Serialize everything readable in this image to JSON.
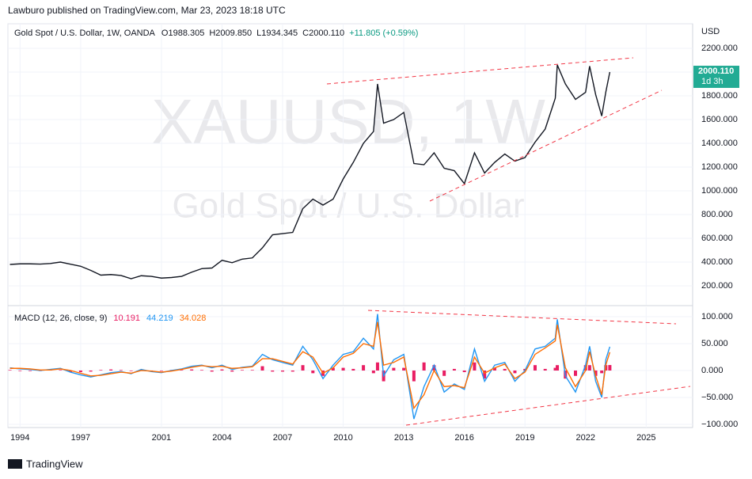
{
  "header": {
    "publisher": "Lawburo published on TradingView.com, Mar 23, 2023 18:18 UTC",
    "symbol": "Gold Spot / U.S. Dollar, 1W, OANDA",
    "ohlc": [
      "O1988.305",
      "H2009.850",
      "L1934.345",
      "C2000.110",
      "+11.805 (+0.59%)"
    ],
    "watermark": "XAUUSD, 1W",
    "watermark_sub": "Gold Spot / U.S. Dollar",
    "currency": "USD",
    "price_tag": "2000.110",
    "countdown": "1d 3h",
    "footer": "TradingView"
  },
  "chart_data": [
    {
      "type": "line",
      "x": [
        1993.5,
        1994,
        1994.5,
        1995,
        1995.5,
        1996,
        1996.5,
        1997,
        1997.5,
        1998,
        1998.5,
        1999,
        1999.5,
        2000,
        2000.5,
        2001,
        2001.5,
        2002,
        2002.5,
        2003,
        2003.5,
        2004,
        2004.5,
        2005,
        2005.5,
        2006,
        2006.5,
        2007,
        2007.5,
        2008,
        2008.5,
        2009,
        2009.5,
        2010,
        2010.5,
        2011,
        2011.5,
        2011.7,
        2012,
        2012.5,
        2013,
        2013.5,
        2014,
        2014.5,
        2015,
        2015.5,
        2016,
        2016.5,
        2017,
        2017.5,
        2018,
        2018.5,
        2019,
        2019.5,
        2020,
        2020.5,
        2020.6,
        2021,
        2021.5,
        2022,
        2022.2,
        2022.5,
        2022.8,
        2023,
        2023.2
      ],
      "series": [
        {
          "color": "#131722",
          "values": [
            380,
            385,
            385,
            383,
            388,
            400,
            382,
            365,
            330,
            290,
            295,
            287,
            260,
            285,
            280,
            265,
            270,
            280,
            315,
            345,
            350,
            415,
            395,
            425,
            435,
            520,
            630,
            640,
            650,
            850,
            930,
            880,
            930,
            1100,
            1240,
            1400,
            1500,
            1900,
            1570,
            1600,
            1660,
            1230,
            1220,
            1320,
            1190,
            1170,
            1060,
            1320,
            1150,
            1240,
            1310,
            1250,
            1280,
            1410,
            1520,
            1780,
            2060,
            1900,
            1770,
            1830,
            2050,
            1810,
            1630,
            1830,
            2000
          ]
        }
      ],
      "xlim": [
        1993.4,
        2027.3
      ],
      "ylim": [
        40,
        2407
      ],
      "yticks": [
        {
          "value": 200,
          "label": "200.000"
        },
        {
          "value": 400,
          "label": "400.000"
        },
        {
          "value": 600,
          "label": "600.000"
        },
        {
          "value": 800,
          "label": "800.000"
        },
        {
          "value": 1000,
          "label": "1000.000"
        },
        {
          "value": 1200,
          "label": "1200.000"
        },
        {
          "value": 1400,
          "label": "1400.000"
        },
        {
          "value": 1600,
          "label": "1600.000"
        },
        {
          "value": 1800,
          "label": "1800.000"
        },
        {
          "value": 2000,
          "label": "2000.000"
        },
        {
          "value": 2200,
          "label": "2200.000"
        }
      ],
      "xticks": [
        1994,
        1997,
        2001,
        2004,
        2007,
        2010,
        2013,
        2016,
        2019,
        2022,
        2025
      ],
      "grid": true
    },
    {
      "type": "line",
      "title": "MACD (12, 26, close, 9)",
      "x": [
        1993.5,
        1994,
        1994.5,
        1995,
        1995.5,
        1996,
        1996.5,
        1997,
        1997.5,
        1998,
        1998.5,
        1999,
        1999.5,
        2000,
        2000.5,
        2001,
        2001.5,
        2002,
        2002.5,
        2003,
        2003.5,
        2004,
        2004.5,
        2005,
        2005.5,
        2006,
        2006.5,
        2007,
        2007.5,
        2008,
        2008.5,
        2009,
        2009.5,
        2010,
        2010.5,
        2011,
        2011.5,
        2011.7,
        2012,
        2012.5,
        2013,
        2013.5,
        2014,
        2014.5,
        2015,
        2015.5,
        2016,
        2016.5,
        2017,
        2017.5,
        2018,
        2018.5,
        2019,
        2019.5,
        2020,
        2020.5,
        2020.6,
        2021,
        2021.5,
        2022,
        2022.2,
        2022.5,
        2022.8,
        2023,
        2023.2
      ],
      "series": [
        {
          "style": "bar",
          "color": "#e91e63",
          "values": [
            1,
            -1,
            -1,
            -1,
            1,
            1,
            -3,
            -3,
            -2,
            1,
            2,
            1,
            -1,
            2,
            -1,
            -1,
            1,
            1,
            2,
            1,
            -2,
            2,
            -2,
            1,
            1,
            8,
            -2,
            -2,
            -2,
            10,
            -5,
            -10,
            5,
            5,
            3,
            10,
            -5,
            15,
            -20,
            5,
            5,
            -20,
            15,
            10,
            -10,
            3,
            -3,
            15,
            -15,
            5,
            3,
            -5,
            3,
            10,
            3,
            5,
            10,
            -15,
            -10,
            10,
            10,
            -10,
            -5,
            10,
            10.191
          ]
        },
        {
          "style": "line",
          "color": "#2196f3",
          "values": [
            5,
            3,
            2,
            0,
            2,
            4,
            -3,
            -8,
            -12,
            -8,
            -4,
            -2,
            -6,
            2,
            -2,
            -4,
            0,
            3,
            8,
            10,
            5,
            10,
            2,
            6,
            8,
            30,
            20,
            15,
            10,
            45,
            20,
            -15,
            10,
            30,
            35,
            60,
            40,
            105,
            -10,
            20,
            30,
            -90,
            -30,
            10,
            -40,
            -25,
            -35,
            40,
            -20,
            10,
            15,
            -20,
            0,
            40,
            45,
            60,
            95,
            -10,
            -40,
            10,
            45,
            -20,
            -50,
            20,
            44.219
          ]
        },
        {
          "style": "line",
          "color": "#ff6d00",
          "values": [
            4,
            4,
            3,
            1,
            1,
            3,
            0,
            -5,
            -10,
            -9,
            -6,
            -3,
            -5,
            0,
            -1,
            -3,
            -1,
            2,
            6,
            9,
            7,
            8,
            4,
            5,
            7,
            22,
            22,
            17,
            12,
            35,
            25,
            -5,
            5,
            25,
            32,
            50,
            45,
            90,
            10,
            15,
            25,
            -70,
            -45,
            0,
            -30,
            -28,
            -32,
            25,
            -5,
            5,
            12,
            -15,
            -3,
            30,
            42,
            55,
            85,
            5,
            -30,
            0,
            35,
            -10,
            -45,
            10,
            34.028
          ]
        }
      ],
      "xlim": [
        1993.4,
        2027.3
      ],
      "ylim": [
        -105.9,
        117.6
      ],
      "yticks": [
        {
          "value": 100,
          "label": "100.000"
        },
        {
          "value": 50,
          "label": "50.000"
        },
        {
          "value": 0,
          "label": "0.000"
        },
        {
          "value": -50,
          "label": "−50.000"
        },
        {
          "value": -100,
          "label": "−100.000"
        }
      ],
      "xticks": [
        1994,
        1997,
        2001,
        2004,
        2007,
        2010,
        2013,
        2016,
        2019,
        2022,
        2025
      ],
      "grid": true
    }
  ]
}
